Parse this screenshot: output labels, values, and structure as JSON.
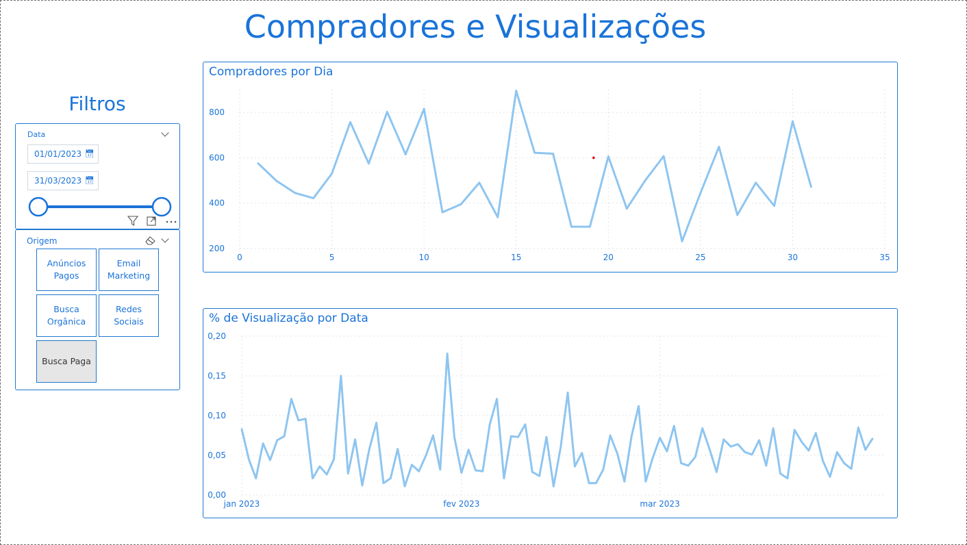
{
  "report_title": "Compradores e Visualizações",
  "filters_title": "Filtros",
  "date_slicer": {
    "label": "Data",
    "start_date": "01/01/2023",
    "end_date": "31/03/2023",
    "range_selected_fraction": [
      0,
      1
    ],
    "icons": [
      "chevron-down-icon",
      "calendar-icon",
      "filter-icon",
      "focus-mode-icon",
      "more-options-icon"
    ]
  },
  "origem_slicer": {
    "label": "Origem",
    "options": [
      "Anúncios\nPagos",
      "Email\nMarketing",
      "Busca\nOrgânica",
      "Redes\nSociais",
      "Busca Paga"
    ],
    "selected": "Busca Paga",
    "icons": [
      "eraser-icon",
      "chevron-down-icon"
    ]
  },
  "colors": {
    "accent": "#1a73d9",
    "series_line": "#8ec5f0",
    "border": "#1f78d1",
    "grid": "#d9d9d9",
    "selected_tile": "#e6e6e6"
  },
  "chart_data": [
    {
      "type": "line",
      "title": "Compradores por Dia",
      "xlabel": "",
      "ylabel": "",
      "xlim": [
        0,
        35
      ],
      "ylim": [
        200,
        900
      ],
      "x_ticks": [
        0,
        5,
        10,
        15,
        20,
        25,
        30,
        35
      ],
      "y_ticks": [
        200,
        400,
        600,
        800
      ],
      "grid": true,
      "x": [
        1,
        2,
        3,
        4,
        5,
        6,
        7,
        8,
        9,
        10,
        11,
        12,
        13,
        14,
        15,
        16,
        17,
        18,
        19,
        20,
        21,
        22,
        23,
        24,
        25,
        26,
        27,
        28,
        29,
        30,
        31
      ],
      "values": [
        575,
        498,
        445,
        422,
        530,
        757,
        575,
        802,
        615,
        815,
        360,
        395,
        490,
        338,
        895,
        622,
        618,
        296,
        296,
        606,
        376,
        500,
        607,
        232,
        445,
        648,
        348,
        490,
        388,
        760,
        472
      ],
      "outlier_point": {
        "x": 19.2,
        "y": 600
      }
    },
    {
      "type": "line",
      "title": "% de Visualização por Data",
      "xlabel": "",
      "ylabel": "",
      "ylim": [
        0,
        0.2
      ],
      "y_ticks": [
        "0,00",
        "0,05",
        "0,10",
        "0,15",
        "0,20"
      ],
      "x_ticks": [
        "jan 2023",
        "fev 2023",
        "mar 2023"
      ],
      "grid": true,
      "x_start": "2023-01-01",
      "values": [
        0.083,
        0.045,
        0.021,
        0.065,
        0.044,
        0.069,
        0.074,
        0.121,
        0.094,
        0.096,
        0.021,
        0.036,
        0.026,
        0.045,
        0.15,
        0.027,
        0.07,
        0.012,
        0.058,
        0.091,
        0.015,
        0.021,
        0.058,
        0.011,
        0.038,
        0.03,
        0.05,
        0.075,
        0.032,
        0.178,
        0.073,
        0.028,
        0.057,
        0.031,
        0.03,
        0.089,
        0.121,
        0.021,
        0.074,
        0.073,
        0.089,
        0.029,
        0.024,
        0.073,
        0.011,
        0.06,
        0.129,
        0.036,
        0.053,
        0.015,
        0.015,
        0.032,
        0.075,
        0.052,
        0.017,
        0.074,
        0.112,
        0.017,
        0.047,
        0.072,
        0.055,
        0.087,
        0.04,
        0.037,
        0.048,
        0.084,
        0.058,
        0.029,
        0.07,
        0.061,
        0.064,
        0.054,
        0.051,
        0.069,
        0.037,
        0.084,
        0.027,
        0.021,
        0.082,
        0.067,
        0.056,
        0.078,
        0.043,
        0.023,
        0.054,
        0.04,
        0.033,
        0.085,
        0.057,
        0.071
      ]
    }
  ]
}
